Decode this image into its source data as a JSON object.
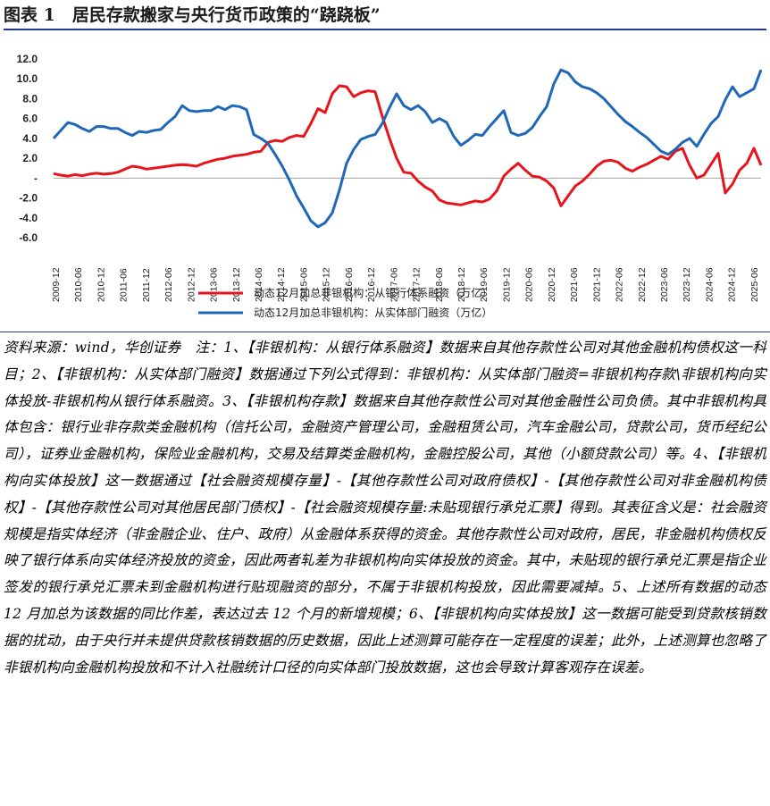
{
  "figure": {
    "title": "图表 1　居民存款搬家与央行货币政策的“跷跷板”"
  },
  "chart_data": {
    "type": "line",
    "title": "",
    "xlabel": "",
    "ylabel": "",
    "ylim": [
      -6.0,
      12.0
    ],
    "yticks": [
      "12.0",
      "10.0",
      "8.0",
      "6.0",
      "4.0",
      "2.0",
      "-",
      "-2.0",
      "-4.0",
      "-6.0"
    ],
    "xticks": [
      "2009-12",
      "2010-06",
      "2010-12",
      "2011-06",
      "2011-12",
      "2012-06",
      "2012-12",
      "2013-06",
      "2013-12",
      "2014-06",
      "2014-12",
      "2015-06",
      "2015-12",
      "2016-06",
      "2016-12",
      "2017-06",
      "2017-12",
      "2018-06",
      "2018-12",
      "2019-06",
      "2019-12",
      "2020-06",
      "2020-12",
      "2021-06",
      "2021-12",
      "2022-06",
      "2022-12",
      "2023-06",
      "2023-12",
      "2024-06",
      "2024-12",
      "2025-06"
    ],
    "grid": false,
    "legend_position": "bottom",
    "series": [
      {
        "name": "动态12月加总非银机构：从银行体系融资（万亿）",
        "color": "#e8141c",
        "values": [
          0.45,
          0.3,
          0.2,
          0.35,
          0.25,
          0.4,
          0.5,
          0.4,
          0.45,
          0.6,
          0.9,
          1.2,
          1.1,
          0.9,
          1.0,
          1.1,
          1.2,
          1.3,
          1.35,
          1.3,
          1.2,
          1.5,
          1.7,
          1.9,
          2.0,
          2.2,
          2.3,
          2.4,
          2.6,
          2.7,
          3.6,
          3.8,
          3.7,
          4.1,
          4.3,
          4.2,
          5.5,
          7.0,
          6.6,
          8.5,
          9.3,
          9.2,
          8.2,
          8.6,
          8.8,
          8.7,
          6.2,
          4.0,
          2.0,
          0.6,
          0.5,
          -0.3,
          -0.9,
          -1.3,
          -2.2,
          -2.5,
          -2.6,
          -2.7,
          -2.5,
          -2.3,
          -2.4,
          -2.1,
          -1.3,
          0.2,
          0.9,
          1.5,
          0.8,
          0.2,
          0.1,
          -0.3,
          -1.0,
          -2.8,
          -1.8,
          -0.8,
          -0.3,
          0.4,
          1.2,
          1.7,
          1.8,
          1.6,
          1.0,
          0.7,
          1.1,
          1.4,
          1.8,
          2.2,
          1.9,
          2.7,
          3.0,
          1.3,
          0.0,
          0.3,
          1.4,
          2.5,
          -1.5,
          -0.6,
          0.8,
          1.5,
          3.0,
          1.3
        ]
      },
      {
        "name": "动态12月加总非银机构：从实体部门融资（万亿）",
        "color": "#1f67b7",
        "values": [
          4.0,
          4.8,
          5.6,
          5.4,
          5.0,
          4.7,
          5.2,
          5.2,
          5.0,
          5.0,
          4.6,
          4.3,
          4.7,
          4.6,
          4.8,
          4.9,
          5.6,
          6.2,
          7.3,
          6.8,
          6.7,
          6.8,
          6.8,
          7.2,
          6.9,
          7.3,
          7.2,
          6.9,
          4.4,
          4.0,
          3.5,
          2.4,
          1.2,
          -0.2,
          -1.8,
          -3.0,
          -4.3,
          -4.9,
          -4.5,
          -3.5,
          -1.2,
          1.5,
          2.9,
          3.9,
          4.2,
          4.4,
          5.5,
          7.1,
          8.5,
          7.3,
          6.9,
          7.3,
          6.7,
          5.6,
          6.0,
          5.6,
          4.2,
          3.3,
          3.8,
          4.4,
          4.3,
          5.2,
          6.0,
          6.8,
          4.6,
          4.3,
          4.5,
          5.1,
          6.2,
          7.2,
          9.5,
          10.9,
          10.6,
          9.7,
          9.2,
          9.0,
          8.6,
          8.0,
          7.2,
          6.4,
          5.7,
          5.2,
          4.6,
          4.1,
          3.4,
          2.7,
          2.4,
          2.9,
          3.6,
          4.0,
          3.2,
          4.4,
          5.5,
          6.2,
          7.9,
          9.2,
          8.2,
          8.6,
          9.0,
          10.9
        ]
      }
    ]
  },
  "notes": {
    "text": "资料来源：wind，华创证券　注：1、【非银机构：从银行体系融资】数据来自其他存款性公司对其他金融机构债权这一科目；2、【非银机构：从实体部门融资】数据通过下列公式得到：非银机构：从实体部门融资=非银机构存款\\非银机构向实体投放-非银机构从银行体系融资。3、【非银机构存款】数据来自其他存款性公司对其他金融性公司负债。其中非银机构具体包含：银行业非存款类金融机构（信托公司，金融资产管理公司，金融租赁公司，汽车金融公司，贷款公司，货币经纪公司），证券业金融机构，保险业金融机构，交易及结算类金融机构，金融控股公司，其他（小额贷款公司）等。4、【非银机构向实体投放】这一数据通过【社会融资规模存量】-【其他存款性公司对政府债权】-【其他存款性公司对非金融机构债权】-【其他存款性公司对其他居民部门债权】-【社会融资规模存量:未贴现银行承兑汇票】得到。其表征含义是：社会融资规模是指实体经济（非金融企业、住户、政府）从金融体系获得的资金。其他存款性公司对政府，居民，非金融机构债权反映了银行体系向实体经济投放的资金，因此两者轧差为非银机构向实体投放的资金。其中，未贴现的银行承兑汇票是指企业签发的银行承兑汇票未到金融机构进行贴现融资的部分，不属于非银机构投放，因此需要减掉。5、上述所有数据的动态 12 月加总为该数据的同比作差，表达过去 12 个月的新增规模；6、【非银机构向实体投放】这一数据可能受到贷款核销数据的扰动，由于央行并未提供贷款核销数据的历史数据，因此上述测算可能存在一定程度的误差；此外，上述测算也忽略了非银机构向金融机构投放和不计入社融统计口径的向实体部门投放数据，这也会导致计算客观存在误差。"
  }
}
